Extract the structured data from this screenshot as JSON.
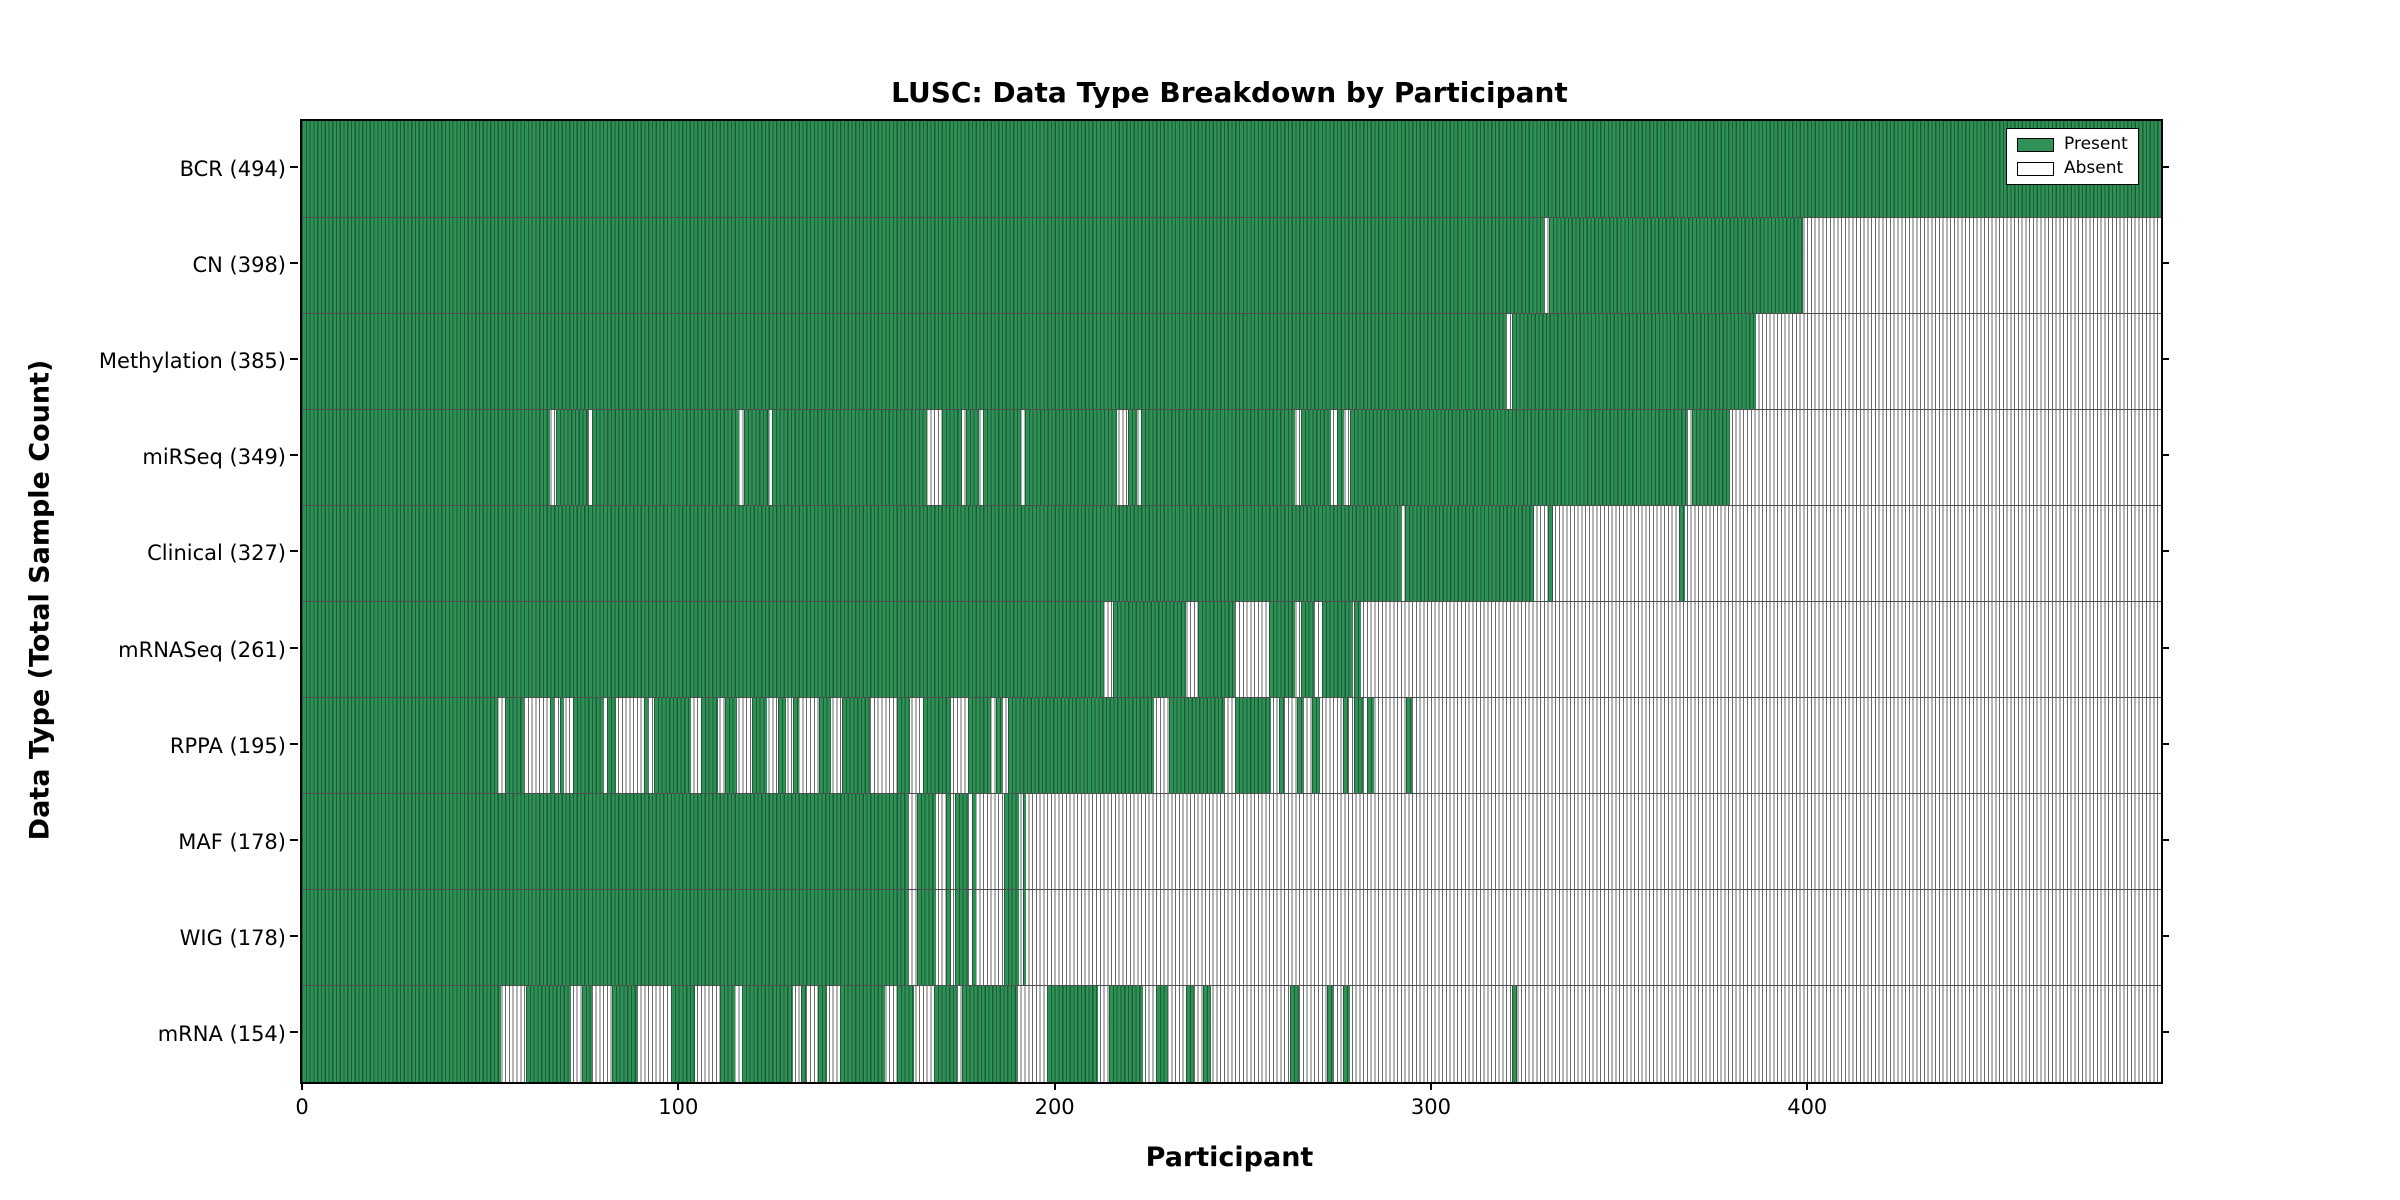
{
  "title": "LUSC: Data Type Breakdown by Participant",
  "legend": {
    "present_label": "Present",
    "absent_label": "Absent"
  },
  "colors": {
    "present_fill": "#2f9156",
    "present_edge": "#0a301a",
    "absent_fill": "#ffffff",
    "absent_edge": "#505050",
    "axis": "#000000"
  },
  "chart_data": {
    "type": "presence_matrix",
    "title": "LUSC: Data Type Breakdown by Participant",
    "xlabel": "Participant",
    "ylabel": "Data Type (Total Sample Count)",
    "x_range": [
      0,
      494
    ],
    "x_ticks": [
      0,
      100,
      200,
      300,
      400
    ],
    "grid": false,
    "legend_position": "upper right",
    "legend_entries": [
      "Present",
      "Absent"
    ],
    "rows": [
      {
        "name": "BCR",
        "count": 494,
        "label": "BCR (494)",
        "present_segments": [
          [
            0,
            494
          ]
        ]
      },
      {
        "name": "CN",
        "count": 398,
        "label": "CN (398)",
        "present_segments": [
          [
            0,
            330
          ],
          [
            331.5,
            399
          ]
        ]
      },
      {
        "name": "Methylation",
        "count": 385,
        "label": "Methylation (385)",
        "present_segments": [
          [
            0,
            320
          ],
          [
            321.5,
            386.5
          ]
        ]
      },
      {
        "name": "miRSeq",
        "count": 349,
        "label": "miRSeq (349)",
        "present_segments": [
          [
            0,
            66
          ],
          [
            67.5,
            76
          ],
          [
            77,
            116
          ],
          [
            117.5,
            124
          ],
          [
            125,
            166
          ],
          [
            170,
            175.5
          ],
          [
            176.5,
            180
          ],
          [
            181,
            191
          ],
          [
            192,
            216.5
          ],
          [
            219.5,
            222
          ],
          [
            223,
            264
          ],
          [
            265.5,
            273.5
          ],
          [
            275,
            277
          ],
          [
            278.5,
            368
          ],
          [
            369.5,
            379.5
          ]
        ]
      },
      {
        "name": "Clinical",
        "count": 327,
        "label": "Clinical (327)",
        "present_segments": [
          [
            0,
            292
          ],
          [
            293,
            327.5
          ],
          [
            331,
            332.5
          ],
          [
            366,
            367.5
          ]
        ]
      },
      {
        "name": "mRNASeq",
        "count": 261,
        "label": "mRNASeq (261)",
        "present_segments": [
          [
            0,
            213
          ],
          [
            215.5,
            235
          ],
          [
            238,
            248
          ],
          [
            257,
            264
          ],
          [
            265.5,
            269
          ],
          [
            271,
            279
          ],
          [
            279.5,
            281.5
          ]
        ]
      },
      {
        "name": "RPPA",
        "count": 195,
        "label": "RPPA (195)",
        "present_segments": [
          [
            0,
            52
          ],
          [
            54,
            59
          ],
          [
            66,
            67
          ],
          [
            68.5,
            69.5
          ],
          [
            72,
            80
          ],
          [
            81,
            83.5
          ],
          [
            91,
            92
          ],
          [
            93.5,
            103.5
          ],
          [
            106,
            110.5
          ],
          [
            112.5,
            115.5
          ],
          [
            119.5,
            123.5
          ],
          [
            126.5,
            128.5
          ],
          [
            130.5,
            132
          ],
          [
            137.5,
            140.5
          ],
          [
            143.5,
            151
          ],
          [
            158,
            161.5
          ],
          [
            165,
            172.5
          ],
          [
            177,
            183
          ],
          [
            184.5,
            186
          ],
          [
            187.5,
            226.5
          ],
          [
            230.5,
            245
          ],
          [
            248,
            257.5
          ],
          [
            259.5,
            261
          ],
          [
            264.5,
            266
          ],
          [
            268.5,
            270.5
          ],
          [
            276.5,
            278
          ],
          [
            279.5,
            282
          ],
          [
            283,
            285
          ],
          [
            293.5,
            295
          ]
        ]
      },
      {
        "name": "MAF",
        "count": 178,
        "label": "MAF (178)",
        "present_segments": [
          [
            0,
            161
          ],
          [
            163.5,
            168.5
          ],
          [
            171,
            172.5
          ],
          [
            173.5,
            177
          ],
          [
            178,
            179
          ],
          [
            186.5,
            190.5
          ],
          [
            191.5,
            192.5
          ]
        ]
      },
      {
        "name": "WIG",
        "count": 178,
        "label": "WIG (178)",
        "present_segments": [
          [
            0,
            161
          ],
          [
            163.5,
            168.5
          ],
          [
            171,
            172.5
          ],
          [
            173.5,
            177
          ],
          [
            178,
            179
          ],
          [
            186.5,
            190.5
          ],
          [
            191.5,
            192.5
          ]
        ]
      },
      {
        "name": "mRNA",
        "count": 154,
        "label": "mRNA (154)",
        "present_segments": [
          [
            0,
            53
          ],
          [
            59.5,
            71.5
          ],
          [
            74.5,
            77
          ],
          [
            82.5,
            89
          ],
          [
            98,
            104.5
          ],
          [
            111,
            115
          ],
          [
            117,
            130.5
          ],
          [
            132.5,
            134
          ],
          [
            137,
            139.5
          ],
          [
            143,
            155
          ],
          [
            158,
            162.5
          ],
          [
            168,
            174
          ],
          [
            175.5,
            190
          ],
          [
            198,
            211.5
          ],
          [
            214.5,
            223.5
          ],
          [
            227,
            230
          ],
          [
            235,
            237
          ],
          [
            239.5,
            241.5
          ],
          [
            262.5,
            265
          ],
          [
            272.5,
            274
          ],
          [
            276.5,
            278.5
          ],
          [
            321.5,
            323
          ]
        ]
      }
    ]
  }
}
